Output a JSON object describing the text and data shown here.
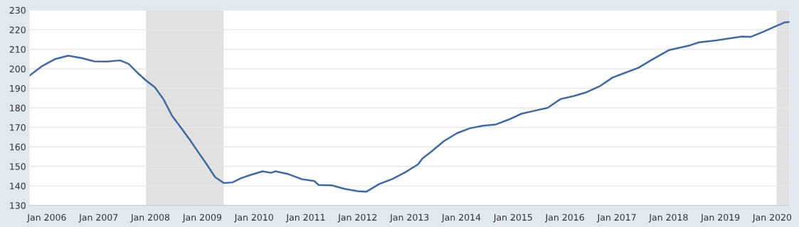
{
  "chart_data": {
    "type": "line",
    "x": [
      "2005-09",
      "2005-12",
      "2006-03",
      "2006-06",
      "2006-09",
      "2006-12",
      "2007-03",
      "2007-06",
      "2007-08",
      "2007-10",
      "2007-12",
      "2008-02",
      "2008-04",
      "2008-06",
      "2008-08",
      "2008-10",
      "2008-12",
      "2009-02",
      "2009-04",
      "2009-06",
      "2009-08",
      "2009-10",
      "2009-12",
      "2010-03",
      "2010-05",
      "2010-06",
      "2010-09",
      "2010-12",
      "2011-03",
      "2011-04",
      "2011-07",
      "2011-10",
      "2012-01",
      "2012-03",
      "2012-06",
      "2012-09",
      "2012-12",
      "2013-03",
      "2013-04",
      "2013-06",
      "2013-09",
      "2013-12",
      "2014-03",
      "2014-06",
      "2014-09",
      "2014-12",
      "2015-03",
      "2015-06",
      "2015-09",
      "2015-12",
      "2016-03",
      "2016-06",
      "2016-09",
      "2016-12",
      "2017-03",
      "2017-06",
      "2017-09",
      "2018-01",
      "2018-03",
      "2018-06",
      "2018-08",
      "2018-12",
      "2019-03",
      "2019-06",
      "2019-08",
      "2019-11",
      "2020-02",
      "2020-04",
      "2020-05"
    ],
    "series": [
      {
        "color": "#4269a0",
        "values": [
          196.5,
          201.5,
          205,
          206.7,
          205.5,
          203.8,
          203.7,
          204.3,
          202.5,
          198,
          194,
          190.5,
          184.5,
          176,
          170,
          164,
          157.5,
          151,
          144.5,
          141.5,
          141.8,
          144,
          145.5,
          147.5,
          146.7,
          147.5,
          146,
          143.5,
          142.5,
          140.5,
          140.3,
          138.5,
          137.3,
          137,
          141,
          143.5,
          147,
          151,
          154,
          157.5,
          163,
          167,
          169.5,
          170.8,
          171.5,
          174,
          177,
          178.5,
          180,
          184.5,
          186,
          188,
          191,
          195.5,
          198,
          200.5,
          204.5,
          209.5,
          210.5,
          212,
          213.5,
          214.5,
          215.5,
          216.5,
          216.3,
          219,
          222,
          223.8,
          224
        ]
      }
    ],
    "xlim": [
      "2005-09",
      "2020-05"
    ],
    "xticks": [
      {
        "value": "2006-01",
        "label": "Jan 2006"
      },
      {
        "value": "2007-01",
        "label": "Jan 2007"
      },
      {
        "value": "2008-01",
        "label": "Jan 2008"
      },
      {
        "value": "2009-01",
        "label": "Jan 2009"
      },
      {
        "value": "2010-01",
        "label": "Jan 2010"
      },
      {
        "value": "2011-01",
        "label": "Jan 2011"
      },
      {
        "value": "2012-01",
        "label": "Jan 2012"
      },
      {
        "value": "2013-01",
        "label": "Jan 2013"
      },
      {
        "value": "2014-01",
        "label": "Jan 2014"
      },
      {
        "value": "2015-01",
        "label": "Jan 2015"
      },
      {
        "value": "2016-01",
        "label": "Jan 2016"
      },
      {
        "value": "2017-01",
        "label": "Jan 2017"
      },
      {
        "value": "2018-01",
        "label": "Jan 2018"
      },
      {
        "value": "2019-01",
        "label": "Jan 2019"
      },
      {
        "value": "2020-01",
        "label": "Jan 2020"
      }
    ],
    "ylim": [
      130,
      230
    ],
    "yticks": [
      130,
      140,
      150,
      160,
      170,
      180,
      190,
      200,
      210,
      220,
      230
    ],
    "bands": [
      {
        "axis": "x",
        "from": "2007-12",
        "to": "2009-06",
        "color": "#e1e1e1"
      },
      {
        "axis": "x",
        "from": "2020-02",
        "to": "2020-05",
        "color": "#e1e1e1"
      }
    ],
    "grid": "y",
    "marker": "none",
    "line_style": "solid"
  }
}
